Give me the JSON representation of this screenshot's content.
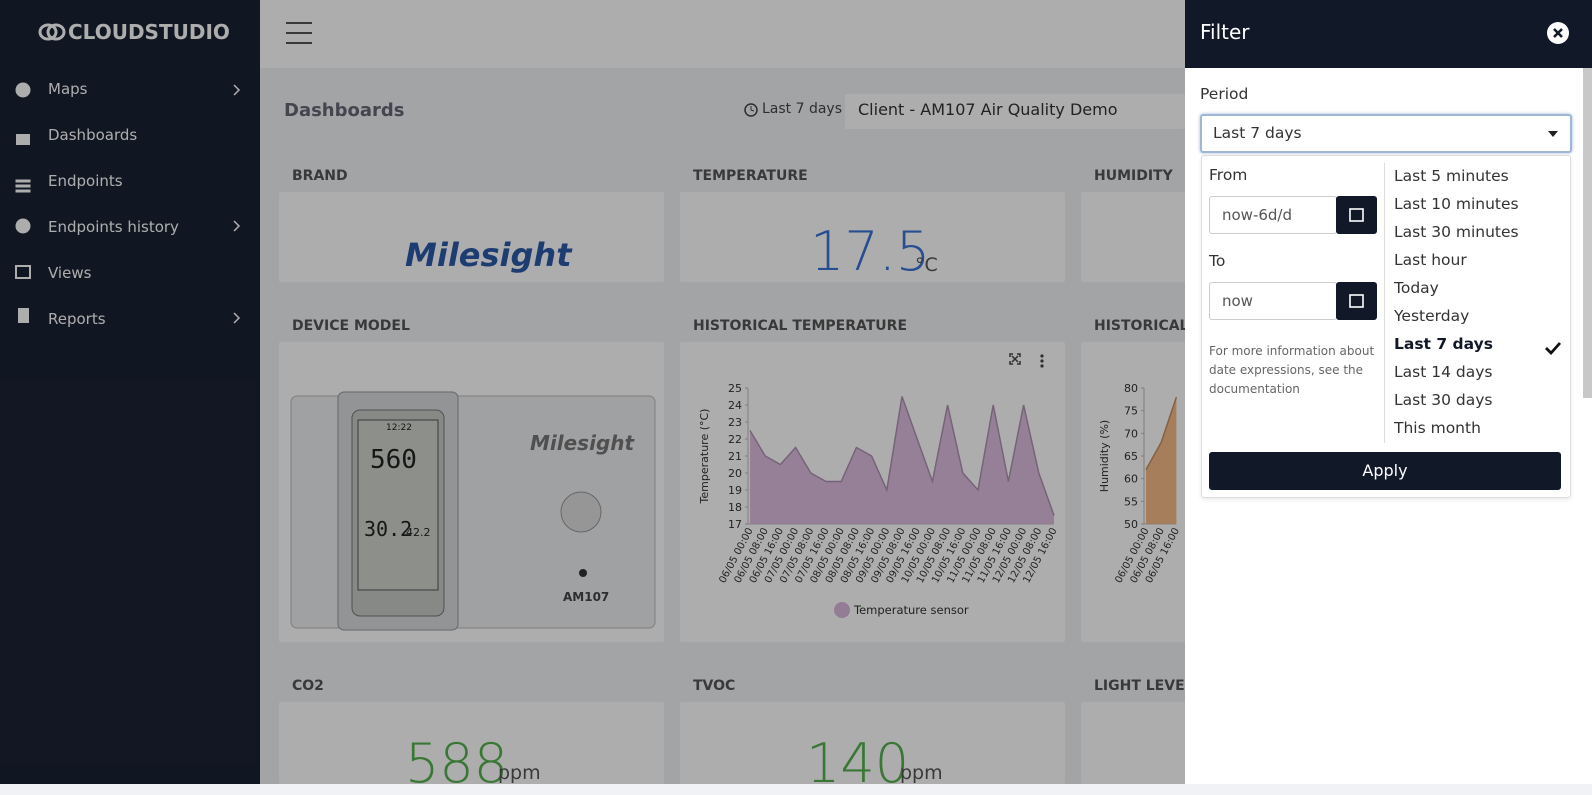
{
  "sidebar": {
    "logo": "CLOUDSTUDIO",
    "menu": [
      "Maps",
      "Dashboards",
      "Endpoints",
      "Endpoints history",
      "Views",
      "Reports"
    ]
  },
  "topbar": {
    "title": "Dashboards",
    "period": "Last 7 days",
    "dashboard": "Client - AM107 Air Quality Demo"
  },
  "widgets": {
    "brand": {
      "title": "BRAND",
      "logo": "Milesight"
    },
    "temperature": {
      "title": "TEMPERATURE",
      "value": 17.5,
      "unit": "°C"
    },
    "humidity": {
      "title": "HUMIDITY"
    },
    "device_model": {
      "title": "DEVICE MODEL",
      "brand": "Milesight",
      "model": "AM107",
      "screen": [
        "12:22",
        "560",
        "30.2",
        "42.2"
      ]
    },
    "historical_temperature": {
      "title": "HISTORICAL TEMPERATURE",
      "chart": {
        "type": "area",
        "y_label": "Temperature (°C)",
        "x": [
          "06/05 00:00",
          "06/05 08:00",
          "06/05 16:00",
          "07/05 00:00",
          "07/05 08:00",
          "07/05 16:00",
          "08/05 00:00",
          "08/05 08:00",
          "08/05 16:00",
          "09/05 00:00",
          "09/05 08:00",
          "09/05 16:00",
          "10/05 00:00",
          "10/05 08:00",
          "10/05 16:00",
          "11/05 00:00",
          "11/05 08:00",
          "11/05 16:00",
          "12/05 00:00",
          "12/05 08:00",
          "12/05 16:00"
        ],
        "series": [
          {
            "name": "Temperature sensor",
            "color": "#dab6de",
            "values": [
              22.5,
              21,
              20.5,
              21.5,
              20,
              19.5,
              19.5,
              21.5,
              21,
              19,
              24.5,
              22,
              19.5,
              24,
              20,
              19,
              24,
              19.5,
              24,
              20,
              17.5
            ]
          }
        ],
        "ylim": [
          17,
          25
        ],
        "yticks": [
          17,
          18,
          19,
          20,
          21,
          22,
          23,
          24,
          25
        ]
      }
    },
    "historical_humidity": {
      "title": "HISTORICAL",
      "chart": {
        "type": "area",
        "y_label": "Humidity (%)",
        "x": [
          "06/05 00:00",
          "06/05 08:00",
          "06/05 16:00"
        ],
        "series": [
          {
            "color": "#f4b27b",
            "values": [
              62,
              68,
              78
            ]
          }
        ],
        "ylim": [
          50,
          80
        ],
        "yticks": [
          50,
          55,
          60,
          65,
          70,
          75,
          80
        ]
      }
    },
    "co2": {
      "title": "CO2",
      "value": 588,
      "unit": "ppm"
    },
    "tvoc": {
      "title": "TVOC",
      "value": 140,
      "unit": "ppm"
    },
    "light_level": {
      "title": "LIGHT LEVEL"
    }
  },
  "filter": {
    "title": "Filter",
    "period_label": "Period",
    "period_value": "Last 7 days",
    "from_label": "From",
    "from_value": "now-6d/d",
    "to_label": "To",
    "to_value": "now",
    "help": "For more information about date expressions, see the documentation",
    "options": [
      {
        "label": "Last 5 minutes"
      },
      {
        "label": "Last 10 minutes"
      },
      {
        "label": "Last 30 minutes"
      },
      {
        "label": "Last hour"
      },
      {
        "label": "Today"
      },
      {
        "label": "Yesterday"
      },
      {
        "label": "Last 7 days",
        "checked": true
      },
      {
        "label": "Last 14 days"
      },
      {
        "label": "Last 30 days"
      },
      {
        "label": "This month"
      }
    ],
    "apply": "Apply"
  }
}
